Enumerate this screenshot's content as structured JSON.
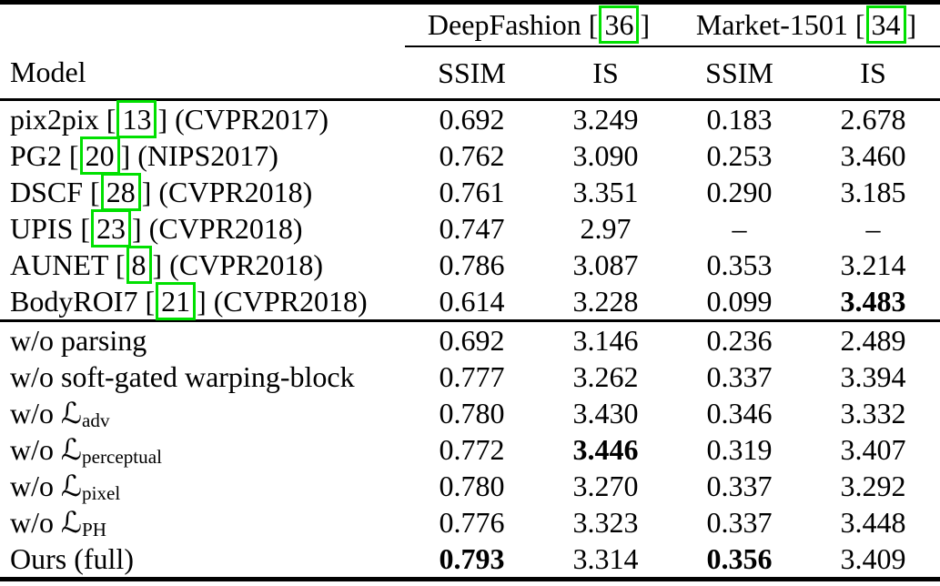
{
  "colors": {
    "citation_box_green": "#00e000",
    "text": "#000000",
    "background": "#ffffff"
  },
  "header": {
    "model": "Model",
    "groups": [
      {
        "pre": "DeepFashion [",
        "cite": "36",
        "post": "]"
      },
      {
        "pre": "Market-1501 [",
        "cite": "34",
        "post": "]"
      }
    ],
    "cols": [
      "SSIM",
      "IS",
      "SSIM",
      "IS"
    ]
  },
  "baselines": {
    "rows": [
      {
        "pre": "pix2pix [",
        "cite": "13",
        "post": "] (CVPR2017)",
        "v": [
          "0.692",
          "3.249",
          "0.183",
          "2.678"
        ]
      },
      {
        "pre": "PG2 [",
        "cite": "20",
        "post": "] (NIPS2017)",
        "v": [
          "0.762",
          "3.090",
          "0.253",
          "3.460"
        ]
      },
      {
        "pre": "DSCF [",
        "cite": "28",
        "post": "] (CVPR2018)",
        "v": [
          "0.761",
          "3.351",
          "0.290",
          "3.185"
        ]
      },
      {
        "pre": "UPIS [",
        "cite": "23",
        "post": "] (CVPR2018)",
        "v": [
          "0.747",
          "2.97",
          "–",
          "–"
        ]
      },
      {
        "pre": "AUNET [",
        "cite": "8",
        "post": "] (CVPR2018)",
        "v": [
          "0.786",
          "3.087",
          "0.353",
          "3.214"
        ]
      },
      {
        "pre": "BodyROI7 [",
        "cite": "21",
        "post": "] (CVPR2018)",
        "v": [
          "0.614",
          "3.228",
          "0.099",
          "3.483"
        ]
      }
    ]
  },
  "ablations": {
    "rows": [
      {
        "text": "w/o parsing",
        "v": [
          "0.692",
          "3.146",
          "0.236",
          "2.489"
        ]
      },
      {
        "text": "w/o soft-gated warping-block",
        "v": [
          "0.777",
          "3.262",
          "0.337",
          "3.394"
        ]
      },
      {
        "pre": "w/o ",
        "math": "ℒ",
        "sub": "adv",
        "v": [
          "0.780",
          "3.430",
          "0.346",
          "3.332"
        ]
      },
      {
        "pre": "w/o ",
        "math": "ℒ",
        "sub": "perceptual",
        "v": [
          "0.772",
          "3.446",
          "0.319",
          "3.407"
        ]
      },
      {
        "pre": "w/o ",
        "math": "ℒ",
        "sub": "pixel",
        "v": [
          "0.780",
          "3.270",
          "0.337",
          "3.292"
        ]
      },
      {
        "pre": "w/o ",
        "math": "ℒ",
        "sub": "PH",
        "v": [
          "0.776",
          "3.323",
          "0.337",
          "3.448"
        ]
      },
      {
        "text": "Ours (full)",
        "v": [
          "0.793",
          "3.314",
          "0.356",
          "3.409"
        ]
      }
    ]
  }
}
